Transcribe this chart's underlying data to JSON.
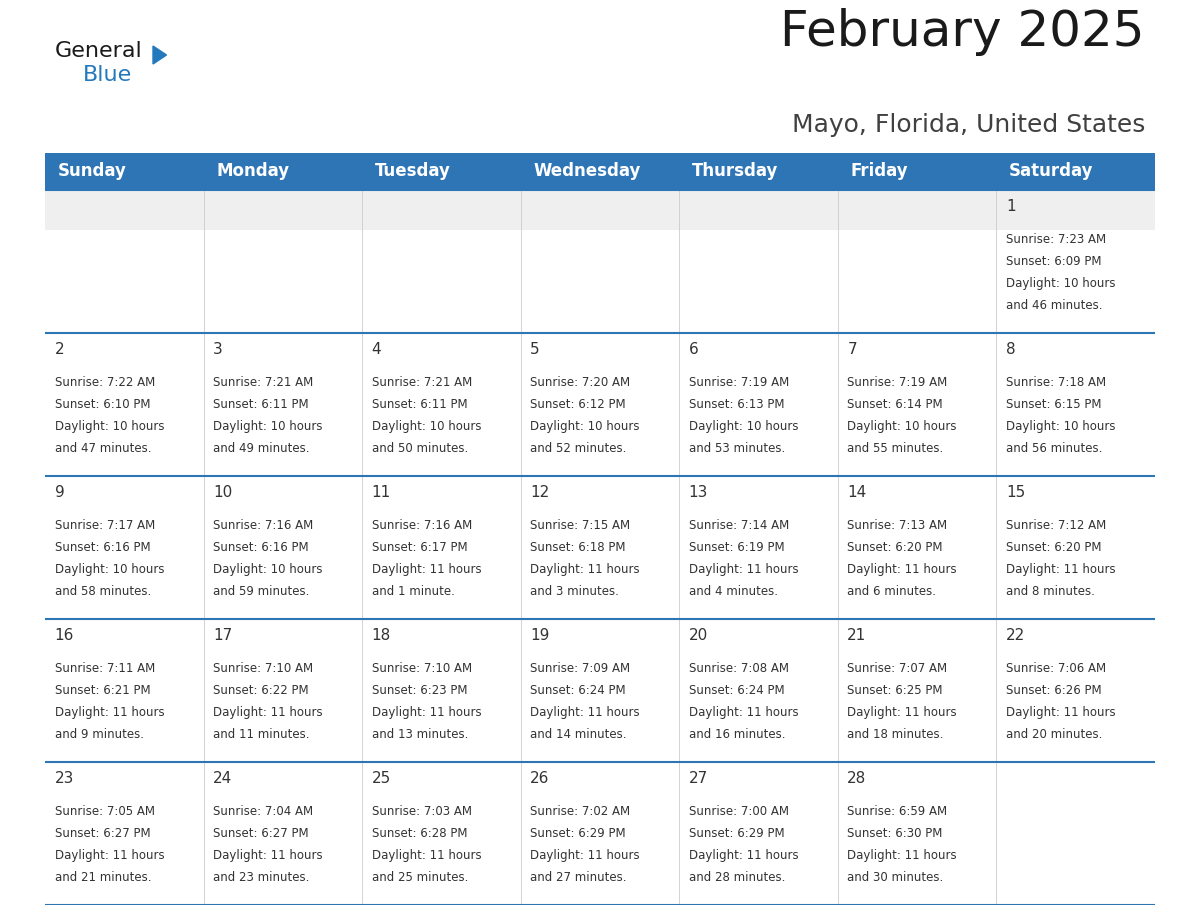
{
  "title": "February 2025",
  "subtitle": "Mayo, Florida, United States",
  "header_color": "#2E75B6",
  "header_text_color": "#FFFFFF",
  "grid_line_color": "#2E75B6",
  "day_headers": [
    "Sunday",
    "Monday",
    "Tuesday",
    "Wednesday",
    "Thursday",
    "Friday",
    "Saturday"
  ],
  "days": [
    {
      "day": 1,
      "col": 6,
      "row": 0,
      "sunrise": "7:23 AM",
      "sunset": "6:09 PM",
      "daylight": "10 hours and 46 minutes."
    },
    {
      "day": 2,
      "col": 0,
      "row": 1,
      "sunrise": "7:22 AM",
      "sunset": "6:10 PM",
      "daylight": "10 hours and 47 minutes."
    },
    {
      "day": 3,
      "col": 1,
      "row": 1,
      "sunrise": "7:21 AM",
      "sunset": "6:11 PM",
      "daylight": "10 hours and 49 minutes."
    },
    {
      "day": 4,
      "col": 2,
      "row": 1,
      "sunrise": "7:21 AM",
      "sunset": "6:11 PM",
      "daylight": "10 hours and 50 minutes."
    },
    {
      "day": 5,
      "col": 3,
      "row": 1,
      "sunrise": "7:20 AM",
      "sunset": "6:12 PM",
      "daylight": "10 hours and 52 minutes."
    },
    {
      "day": 6,
      "col": 4,
      "row": 1,
      "sunrise": "7:19 AM",
      "sunset": "6:13 PM",
      "daylight": "10 hours and 53 minutes."
    },
    {
      "day": 7,
      "col": 5,
      "row": 1,
      "sunrise": "7:19 AM",
      "sunset": "6:14 PM",
      "daylight": "10 hours and 55 minutes."
    },
    {
      "day": 8,
      "col": 6,
      "row": 1,
      "sunrise": "7:18 AM",
      "sunset": "6:15 PM",
      "daylight": "10 hours and 56 minutes."
    },
    {
      "day": 9,
      "col": 0,
      "row": 2,
      "sunrise": "7:17 AM",
      "sunset": "6:16 PM",
      "daylight": "10 hours and 58 minutes."
    },
    {
      "day": 10,
      "col": 1,
      "row": 2,
      "sunrise": "7:16 AM",
      "sunset": "6:16 PM",
      "daylight": "10 hours and 59 minutes."
    },
    {
      "day": 11,
      "col": 2,
      "row": 2,
      "sunrise": "7:16 AM",
      "sunset": "6:17 PM",
      "daylight": "11 hours and 1 minute."
    },
    {
      "day": 12,
      "col": 3,
      "row": 2,
      "sunrise": "7:15 AM",
      "sunset": "6:18 PM",
      "daylight": "11 hours and 3 minutes."
    },
    {
      "day": 13,
      "col": 4,
      "row": 2,
      "sunrise": "7:14 AM",
      "sunset": "6:19 PM",
      "daylight": "11 hours and 4 minutes."
    },
    {
      "day": 14,
      "col": 5,
      "row": 2,
      "sunrise": "7:13 AM",
      "sunset": "6:20 PM",
      "daylight": "11 hours and 6 minutes."
    },
    {
      "day": 15,
      "col": 6,
      "row": 2,
      "sunrise": "7:12 AM",
      "sunset": "6:20 PM",
      "daylight": "11 hours and 8 minutes."
    },
    {
      "day": 16,
      "col": 0,
      "row": 3,
      "sunrise": "7:11 AM",
      "sunset": "6:21 PM",
      "daylight": "11 hours and 9 minutes."
    },
    {
      "day": 17,
      "col": 1,
      "row": 3,
      "sunrise": "7:10 AM",
      "sunset": "6:22 PM",
      "daylight": "11 hours and 11 minutes."
    },
    {
      "day": 18,
      "col": 2,
      "row": 3,
      "sunrise": "7:10 AM",
      "sunset": "6:23 PM",
      "daylight": "11 hours and 13 minutes."
    },
    {
      "day": 19,
      "col": 3,
      "row": 3,
      "sunrise": "7:09 AM",
      "sunset": "6:24 PM",
      "daylight": "11 hours and 14 minutes."
    },
    {
      "day": 20,
      "col": 4,
      "row": 3,
      "sunrise": "7:08 AM",
      "sunset": "6:24 PM",
      "daylight": "11 hours and 16 minutes."
    },
    {
      "day": 21,
      "col": 5,
      "row": 3,
      "sunrise": "7:07 AM",
      "sunset": "6:25 PM",
      "daylight": "11 hours and 18 minutes."
    },
    {
      "day": 22,
      "col": 6,
      "row": 3,
      "sunrise": "7:06 AM",
      "sunset": "6:26 PM",
      "daylight": "11 hours and 20 minutes."
    },
    {
      "day": 23,
      "col": 0,
      "row": 4,
      "sunrise": "7:05 AM",
      "sunset": "6:27 PM",
      "daylight": "11 hours and 21 minutes."
    },
    {
      "day": 24,
      "col": 1,
      "row": 4,
      "sunrise": "7:04 AM",
      "sunset": "6:27 PM",
      "daylight": "11 hours and 23 minutes."
    },
    {
      "day": 25,
      "col": 2,
      "row": 4,
      "sunrise": "7:03 AM",
      "sunset": "6:28 PM",
      "daylight": "11 hours and 25 minutes."
    },
    {
      "day": 26,
      "col": 3,
      "row": 4,
      "sunrise": "7:02 AM",
      "sunset": "6:29 PM",
      "daylight": "11 hours and 27 minutes."
    },
    {
      "day": 27,
      "col": 4,
      "row": 4,
      "sunrise": "7:00 AM",
      "sunset": "6:29 PM",
      "daylight": "11 hours and 28 minutes."
    },
    {
      "day": 28,
      "col": 5,
      "row": 4,
      "sunrise": "6:59 AM",
      "sunset": "6:30 PM",
      "daylight": "11 hours and 30 minutes."
    }
  ],
  "num_rows": 5,
  "num_cols": 7,
  "logo_text_general": "General",
  "logo_text_blue": "Blue",
  "logo_color_general": "#1a1a1a",
  "logo_color_blue": "#2479BD",
  "text_color_day": "#333333",
  "text_color_info": "#333333",
  "cell_text_fontsize": 8.5,
  "day_num_fontsize": 11,
  "header_fontsize": 12,
  "title_fontsize": 36,
  "subtitle_fontsize": 18
}
